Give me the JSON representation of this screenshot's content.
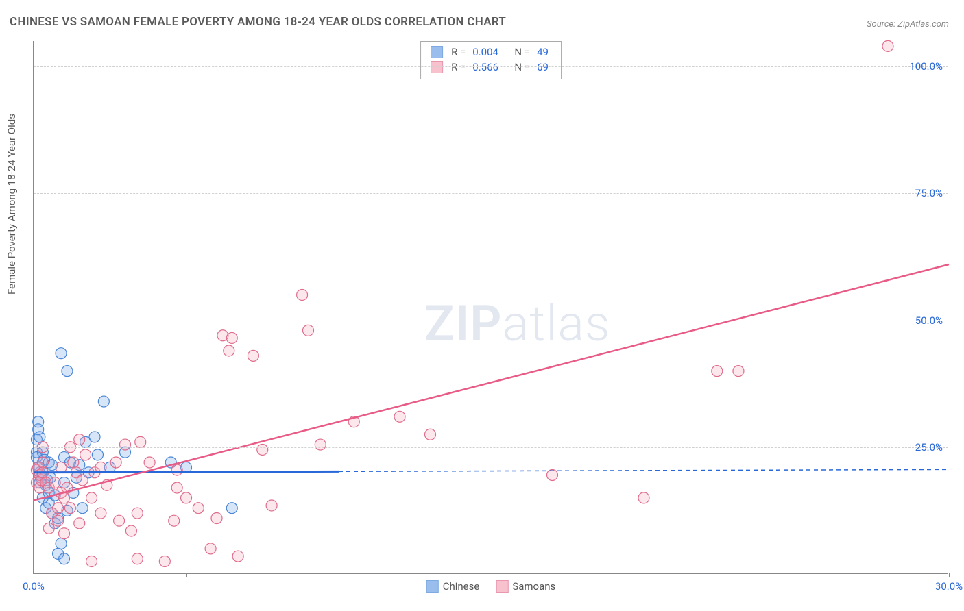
{
  "title": "CHINESE VS SAMOAN FEMALE POVERTY AMONG 18-24 YEAR OLDS CORRELATION CHART",
  "source": "Source: ZipAtlas.com",
  "y_axis_title": "Female Poverty Among 18-24 Year Olds",
  "watermark": {
    "zip": "ZIP",
    "atlas": "atlas"
  },
  "chart": {
    "type": "scatter",
    "background_color": "#ffffff",
    "grid_color": "#d0d0d0",
    "axis_color": "#888888",
    "xlim": [
      0,
      30
    ],
    "ylim": [
      0,
      105
    ],
    "x_tick_step": 5,
    "x_tick_labels": {
      "0": "0.0%",
      "30": "30.0%"
    },
    "x_tick_label_colors": {
      "0": "#2968d8",
      "30": "#2968d8"
    },
    "y_ticks": [
      20,
      25,
      50,
      75,
      100
    ],
    "y_tick_labels": {
      "20": "",
      "25": "25.0%",
      "50": "50.0%",
      "75": "75.0%",
      "100": "100.0%"
    },
    "y_tick_grid": {
      "20": "dashed-blue",
      "25": "dashed",
      "50": "dashed",
      "75": "dashed",
      "100": "dashed"
    },
    "y_tick_label_color": "#2968d8",
    "marker_radius": 8,
    "marker_stroke_width": 1.2,
    "marker_fill_opacity": 0.28,
    "series": [
      {
        "name": "Chinese",
        "color": "#6ea3e8",
        "stroke": "#4a86d6",
        "R": "0.004",
        "N": "49",
        "trend": {
          "x1": 0,
          "y1": 20.0,
          "x2": 10,
          "y2": 20.2,
          "extend_dashed_to_x": 30,
          "line_width": 3,
          "line_color": "#2968d8"
        },
        "points": [
          [
            0.1,
            26.5
          ],
          [
            0.1,
            24.0
          ],
          [
            0.1,
            23.0
          ],
          [
            0.15,
            30.0
          ],
          [
            0.15,
            28.5
          ],
          [
            0.2,
            27.0
          ],
          [
            0.2,
            20.0
          ],
          [
            0.2,
            18.0
          ],
          [
            0.2,
            21.0
          ],
          [
            0.25,
            19.0
          ],
          [
            0.3,
            24.0
          ],
          [
            0.3,
            20.0
          ],
          [
            0.3,
            15.0
          ],
          [
            0.35,
            22.5
          ],
          [
            0.4,
            13.0
          ],
          [
            0.4,
            17.5
          ],
          [
            0.45,
            18.5
          ],
          [
            0.5,
            22.0
          ],
          [
            0.5,
            16.0
          ],
          [
            0.5,
            14.0
          ],
          [
            0.55,
            19.0
          ],
          [
            0.6,
            21.5
          ],
          [
            0.6,
            12.0
          ],
          [
            0.7,
            15.5
          ],
          [
            0.7,
            10.0
          ],
          [
            0.8,
            4.0
          ],
          [
            0.8,
            11.0
          ],
          [
            0.9,
            6.0
          ],
          [
            0.9,
            43.5
          ],
          [
            1.0,
            23.0
          ],
          [
            1.0,
            3.0
          ],
          [
            1.0,
            18.0
          ],
          [
            1.1,
            40.0
          ],
          [
            1.1,
            12.5
          ],
          [
            1.2,
            22.0
          ],
          [
            1.3,
            16.0
          ],
          [
            1.4,
            19.0
          ],
          [
            1.5,
            21.5
          ],
          [
            1.6,
            13.0
          ],
          [
            1.7,
            26.0
          ],
          [
            1.8,
            20.0
          ],
          [
            2.0,
            27.0
          ],
          [
            2.1,
            23.5
          ],
          [
            2.3,
            34.0
          ],
          [
            2.5,
            21.0
          ],
          [
            3.0,
            24.0
          ],
          [
            4.5,
            22.0
          ],
          [
            5.0,
            21.0
          ],
          [
            6.5,
            13.0
          ]
        ]
      },
      {
        "name": "Samoans",
        "color": "#f4a8ba",
        "stroke": "#e06c8c",
        "R": "0.566",
        "N": "69",
        "trend": {
          "x1": 0,
          "y1": 14.5,
          "x2": 30,
          "y2": 61.0,
          "line_width": 2.5,
          "line_color": "#e85b87"
        },
        "points": [
          [
            0.1,
            20.5
          ],
          [
            0.1,
            18.0
          ],
          [
            0.15,
            21.0
          ],
          [
            0.2,
            19.5
          ],
          [
            0.2,
            17.0
          ],
          [
            0.25,
            18.5
          ],
          [
            0.3,
            22.0
          ],
          [
            0.3,
            25.0
          ],
          [
            0.3,
            20.0
          ],
          [
            0.4,
            18.0
          ],
          [
            0.5,
            17.0
          ],
          [
            0.5,
            9.0
          ],
          [
            0.6,
            12.0
          ],
          [
            0.7,
            18.0
          ],
          [
            0.8,
            10.5
          ],
          [
            0.8,
            13.0
          ],
          [
            0.9,
            21.0
          ],
          [
            0.9,
            16.0
          ],
          [
            1.0,
            8.0
          ],
          [
            1.0,
            15.0
          ],
          [
            1.1,
            17.0
          ],
          [
            1.2,
            13.0
          ],
          [
            1.2,
            25.0
          ],
          [
            1.3,
            22.0
          ],
          [
            1.4,
            20.0
          ],
          [
            1.5,
            10.0
          ],
          [
            1.5,
            26.5
          ],
          [
            1.6,
            18.5
          ],
          [
            1.7,
            23.5
          ],
          [
            1.9,
            2.5
          ],
          [
            1.9,
            15.0
          ],
          [
            2.0,
            20.0
          ],
          [
            2.2,
            12.0
          ],
          [
            2.2,
            21.0
          ],
          [
            2.4,
            17.5
          ],
          [
            2.7,
            22.0
          ],
          [
            2.8,
            10.5
          ],
          [
            3.0,
            25.5
          ],
          [
            3.2,
            8.5
          ],
          [
            3.4,
            3.0
          ],
          [
            3.4,
            12.0
          ],
          [
            3.5,
            26.0
          ],
          [
            3.8,
            22.0
          ],
          [
            4.3,
            2.5
          ],
          [
            4.6,
            10.5
          ],
          [
            4.7,
            20.5
          ],
          [
            4.7,
            17.0
          ],
          [
            5.0,
            15.0
          ],
          [
            5.4,
            13.0
          ],
          [
            5.8,
            5.0
          ],
          [
            6.0,
            11.0
          ],
          [
            6.2,
            47.0
          ],
          [
            6.4,
            44.0
          ],
          [
            6.5,
            46.5
          ],
          [
            6.7,
            3.5
          ],
          [
            7.2,
            43.0
          ],
          [
            7.5,
            24.5
          ],
          [
            7.8,
            13.5
          ],
          [
            8.8,
            55.0
          ],
          [
            9.0,
            48.0
          ],
          [
            9.4,
            25.5
          ],
          [
            10.5,
            30.0
          ],
          [
            12.0,
            31.0
          ],
          [
            13.0,
            27.5
          ],
          [
            17.0,
            19.5
          ],
          [
            20.0,
            15.0
          ],
          [
            22.4,
            40.0
          ],
          [
            23.1,
            40.0
          ],
          [
            28.0,
            104.0
          ]
        ]
      }
    ]
  },
  "legend_top": {
    "label_R": "R =",
    "label_N": "N ="
  },
  "legend_bottom": [
    "Chinese",
    "Samoans"
  ]
}
